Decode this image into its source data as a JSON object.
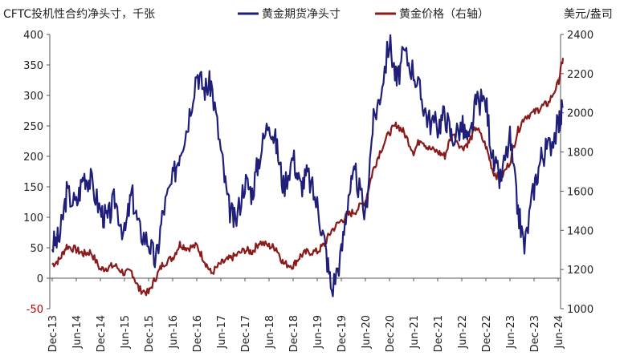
{
  "chart_data": {
    "type": "line",
    "title": "CFTC投机性合约净头寸，千张",
    "right_axis_unit": "美元/盎司",
    "categories": [
      "Dec-13",
      "Jun-14",
      "Dec-14",
      "Jun-15",
      "Dec-15",
      "Jun-16",
      "Dec-16",
      "Jun-17",
      "Dec-17",
      "Jun-18",
      "Dec-18",
      "Jun-19",
      "Dec-19",
      "Jun-20",
      "Dec-20",
      "Jun-21",
      "Dec-21",
      "Jun-22",
      "Dec-22",
      "Jun-23",
      "Dec-23",
      "Jun-24"
    ],
    "y_left": {
      "min": -50,
      "max": 400,
      "step": 50,
      "ticks": [
        "-50",
        "0",
        "50",
        "100",
        "150",
        "200",
        "250",
        "300",
        "350",
        "400"
      ]
    },
    "y_right": {
      "min": 1000,
      "max": 2400,
      "step": 200,
      "ticks": [
        "1000",
        "1200",
        "1400",
        "1600",
        "1800",
        "2000",
        "2200",
        "2400"
      ]
    },
    "grid": false,
    "legend_position": "top",
    "series": [
      {
        "name": "黄金期货净头寸",
        "axis": "left",
        "color": "#1f1f7a",
        "x": [
          0,
          0.3,
          0.6,
          1,
          1.3,
          1.6,
          2,
          2.3,
          2.6,
          3,
          3.3,
          3.6,
          4,
          4.3,
          4.6,
          5,
          5.3,
          5.6,
          6,
          6.3,
          6.6,
          7,
          7.3,
          7.6,
          8,
          8.3,
          8.6,
          9,
          9.3,
          9.6,
          10,
          10.3,
          10.6,
          11,
          11.3,
          11.6,
          12,
          12.3,
          12.6,
          13,
          13.3,
          13.6,
          14,
          14.3,
          14.6,
          15,
          15.3,
          15.6,
          16,
          16.3,
          16.6,
          17,
          17.3,
          17.6,
          18,
          18.3,
          18.6,
          19,
          19.3,
          19.6,
          20,
          20.3,
          20.6,
          21,
          21.2
        ],
        "values": [
          55,
          65,
          140,
          120,
          170,
          160,
          110,
          95,
          130,
          70,
          140,
          80,
          60,
          25,
          110,
          160,
          210,
          250,
          340,
          310,
          320,
          210,
          120,
          90,
          160,
          140,
          200,
          260,
          220,
          150,
          200,
          150,
          170,
          120,
          60,
          -20,
          40,
          140,
          170,
          100,
          250,
          300,
          390,
          320,
          370,
          340,
          300,
          260,
          250,
          270,
          230,
          250,
          220,
          290,
          290,
          190,
          160,
          230,
          120,
          50,
          150,
          200,
          215,
          250,
          280
        ],
        "_comment": "weekly-smoothed reading of the net position series"
      },
      {
        "name": "黄金价格（右轴）",
        "axis": "right",
        "color": "#8b1a1a",
        "x": [
          0,
          0.3,
          0.6,
          1,
          1.3,
          1.6,
          2,
          2.3,
          2.6,
          3,
          3.3,
          3.6,
          4,
          4.3,
          4.6,
          5,
          5.3,
          5.6,
          6,
          6.3,
          6.6,
          7,
          7.3,
          7.6,
          8,
          8.3,
          8.6,
          9,
          9.3,
          9.6,
          10,
          10.3,
          10.6,
          11,
          11.3,
          11.6,
          12,
          12.3,
          12.6,
          13,
          13.3,
          13.6,
          14,
          14.3,
          14.6,
          15,
          15.3,
          15.6,
          16,
          16.3,
          16.6,
          17,
          17.3,
          17.6,
          18,
          18.3,
          18.6,
          19,
          19.3,
          19.6,
          20,
          20.3,
          20.6,
          21,
          21.2
        ],
        "values": [
          1225,
          1250,
          1320,
          1300,
          1280,
          1290,
          1200,
          1210,
          1220,
          1180,
          1190,
          1100,
          1080,
          1160,
          1230,
          1260,
          1330,
          1310,
          1320,
          1250,
          1180,
          1230,
          1250,
          1270,
          1300,
          1290,
          1340,
          1320,
          1310,
          1230,
          1220,
          1270,
          1290,
          1290,
          1330,
          1400,
          1450,
          1480,
          1500,
          1550,
          1700,
          1800,
          1900,
          1940,
          1900,
          1800,
          1870,
          1820,
          1800,
          1780,
          1900,
          1820,
          1850,
          1930,
          1830,
          1700,
          1660,
          1750,
          1900,
          1980,
          2000,
          2030,
          2050,
          2150,
          2280
        ],
        "_comment": "price series in USD/oz"
      }
    ]
  }
}
